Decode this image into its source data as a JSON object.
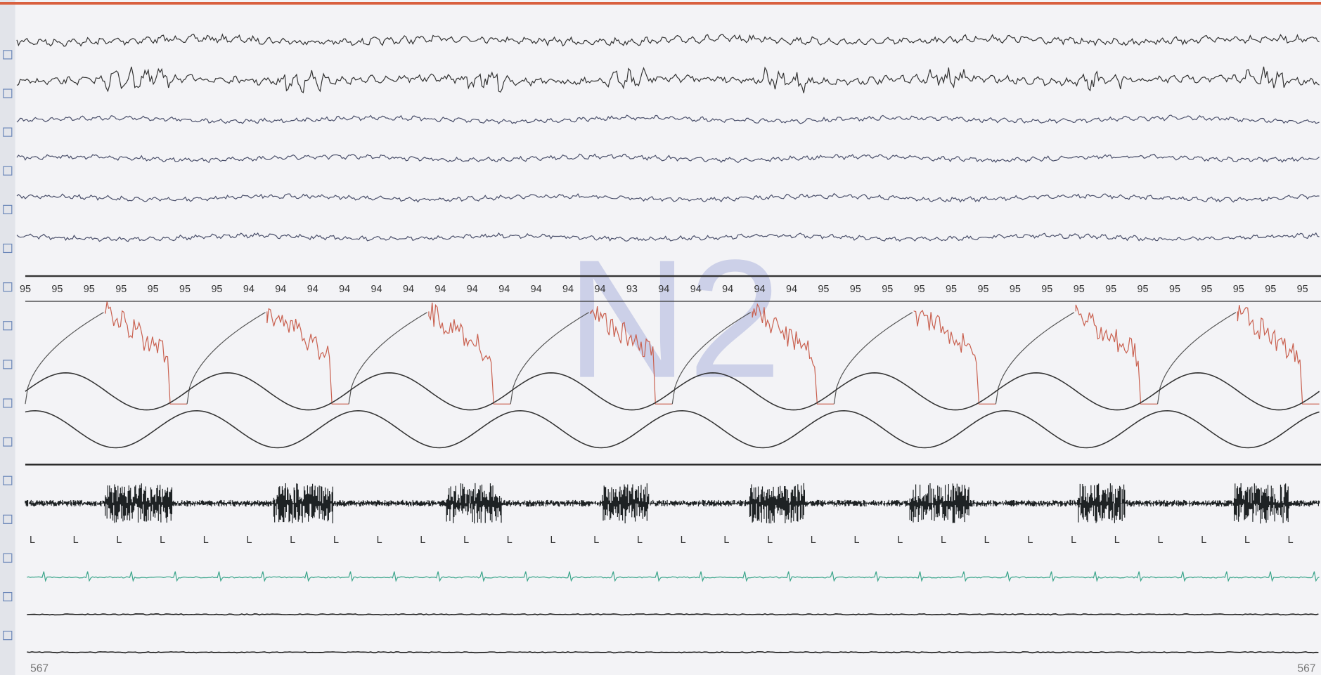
{
  "stage_watermark": "N2",
  "spo2_labels": [
    95,
    95,
    95,
    95,
    95,
    95,
    95,
    94,
    94,
    94,
    94,
    94,
    94,
    94,
    94,
    94,
    94,
    94,
    94,
    93,
    94,
    94,
    94,
    94,
    94,
    95,
    95,
    95,
    95,
    95,
    95,
    95,
    95,
    95,
    95,
    95,
    95,
    95,
    95,
    95,
    95
  ],
  "event_markers": [
    "L",
    "L",
    "L",
    "L",
    "L",
    "L",
    "L",
    "L",
    "L",
    "L",
    "L",
    "L",
    "L",
    "L",
    "L",
    "L",
    "L",
    "L",
    "L",
    "L",
    "L",
    "L",
    "L",
    "L",
    "L",
    "L",
    "L",
    "L",
    "L",
    "L"
  ],
  "epoch_left": "567",
  "epoch_right": "567"
}
